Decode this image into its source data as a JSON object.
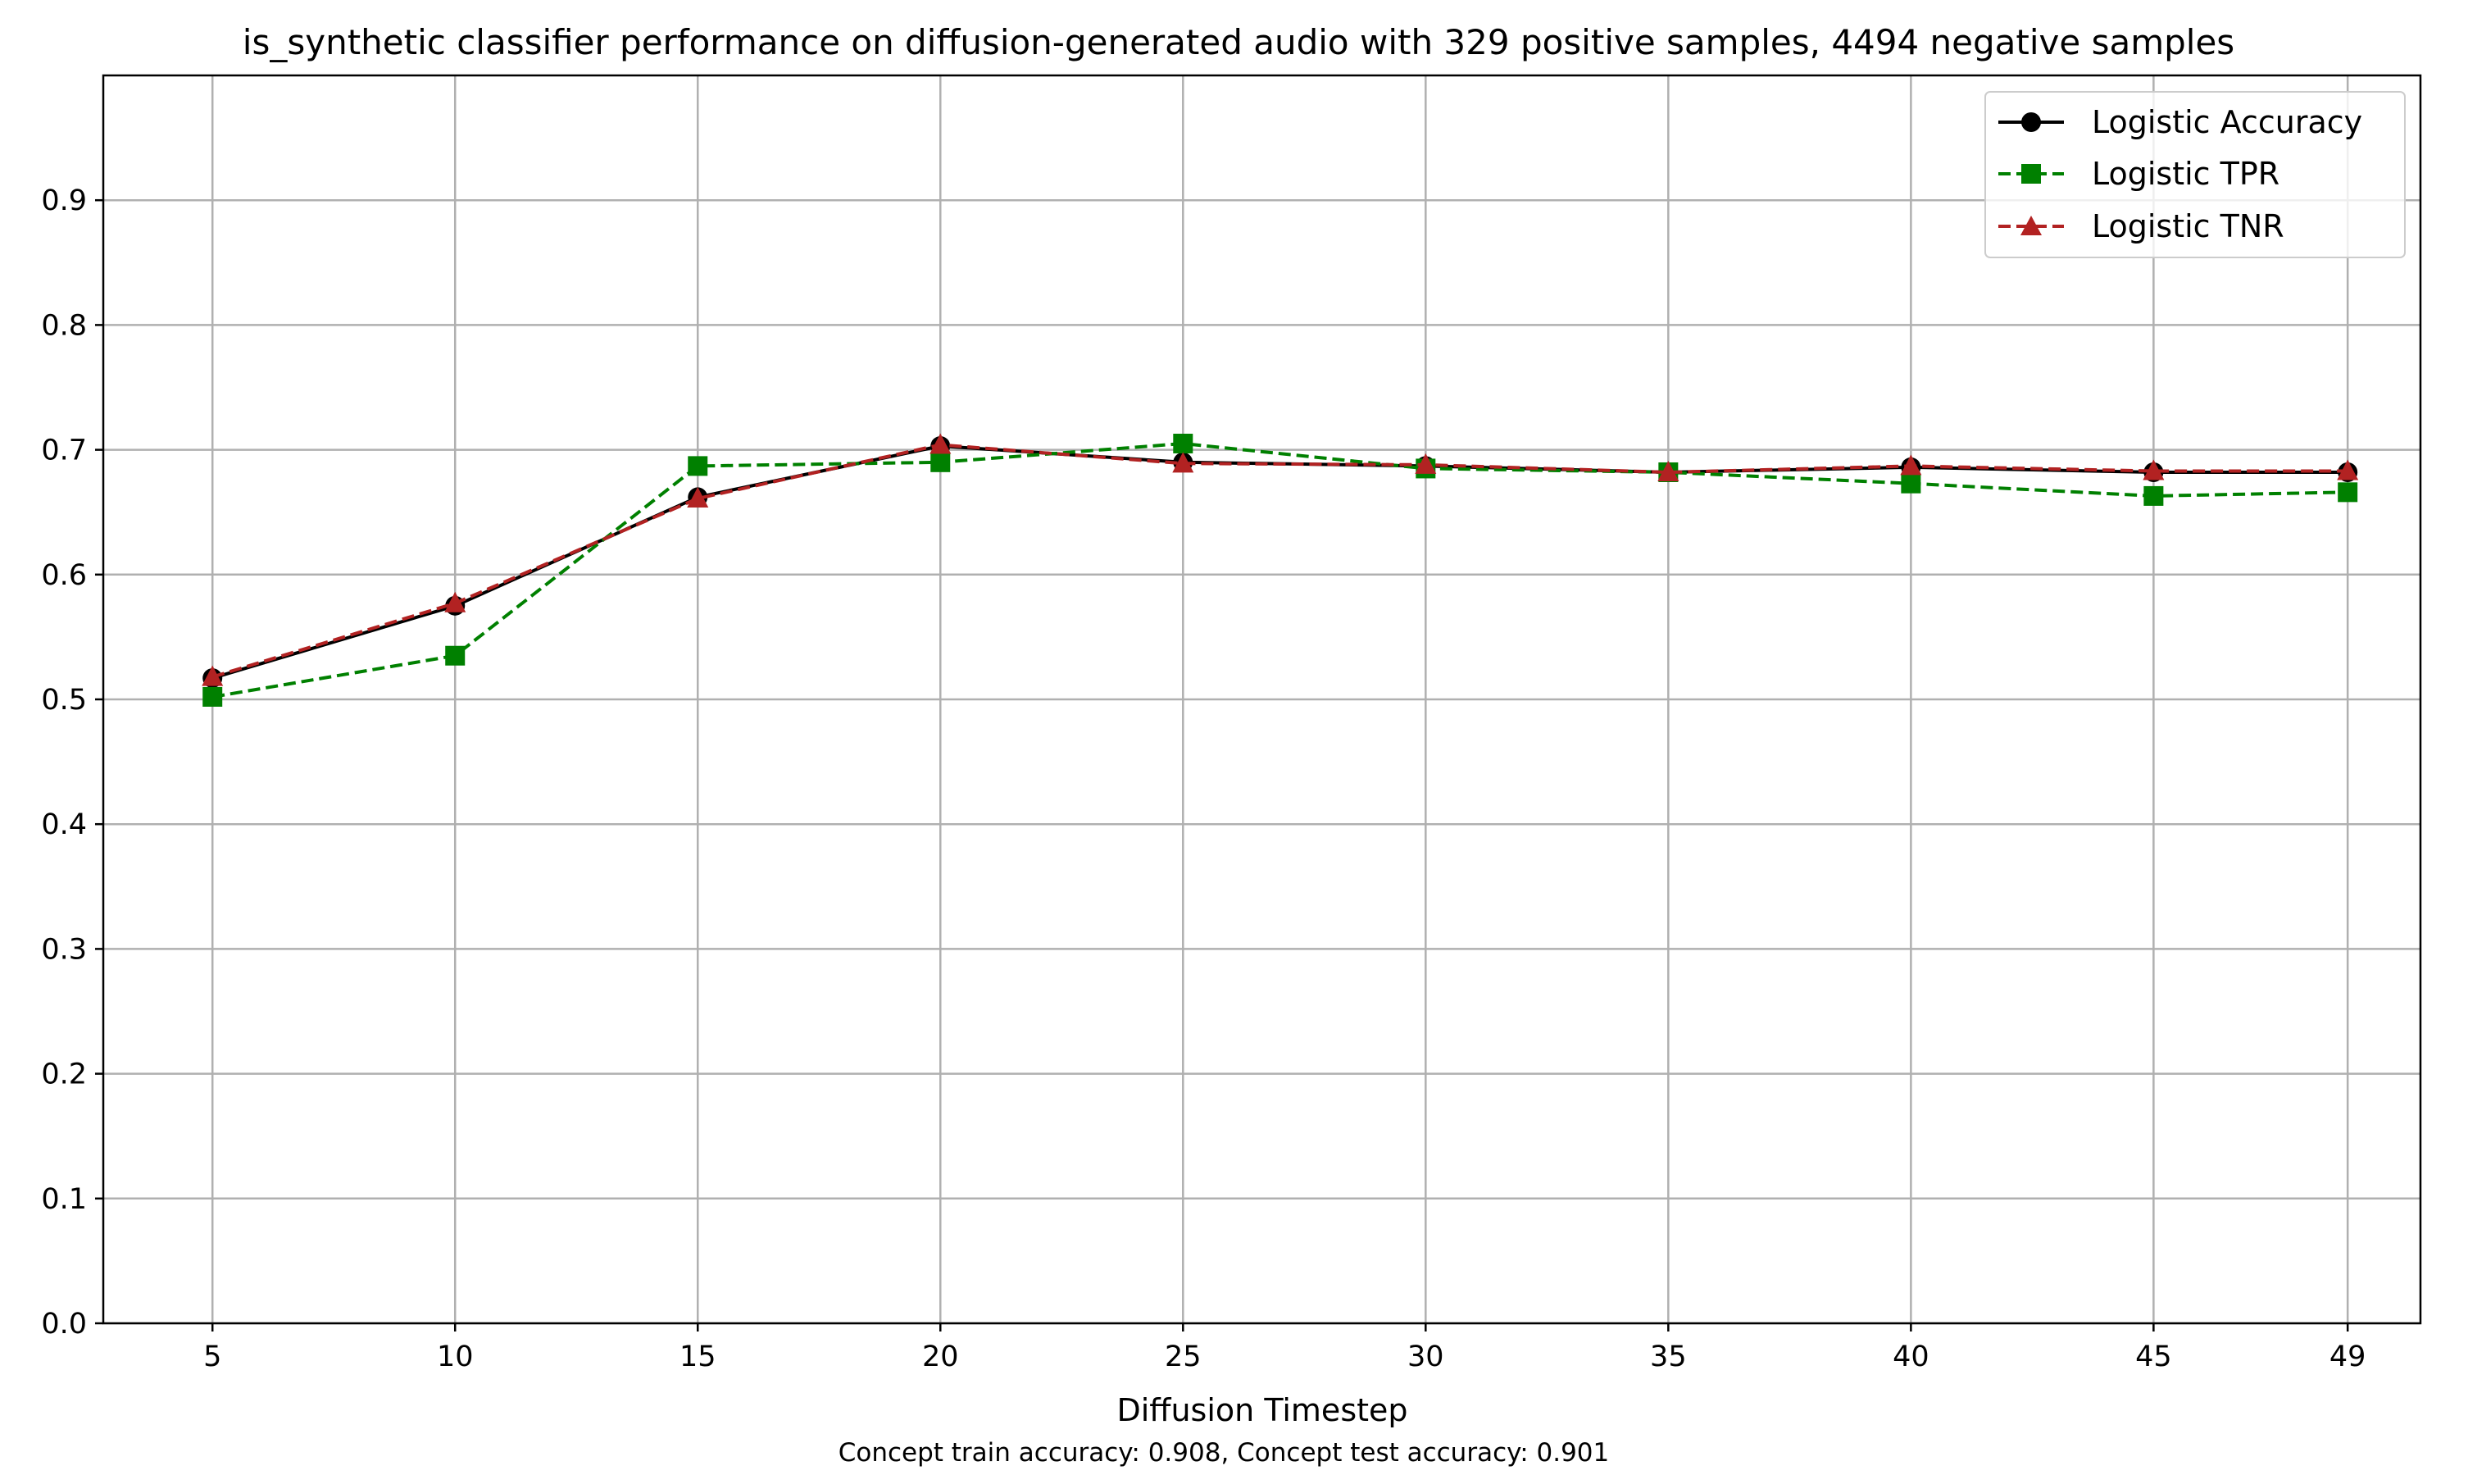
{
  "chart_data": {
    "type": "line",
    "title": "is_synthetic classifier performance on diffusion-generated audio with 329 positive samples, 4494 negative samples",
    "xlabel": "Diffusion Timestep",
    "ylabel": "",
    "footnote": "Concept train accuracy: 0.908, Concept test accuracy: 0.901",
    "x": [
      5,
      10,
      15,
      20,
      25,
      30,
      35,
      40,
      45,
      49
    ],
    "x_tick_labels": [
      "5",
      "10",
      "15",
      "20",
      "25",
      "30",
      "35",
      "40",
      "45",
      "49"
    ],
    "y_ticks": [
      0.0,
      0.1,
      0.2,
      0.3,
      0.4,
      0.5,
      0.6,
      0.7,
      0.8,
      0.9
    ],
    "y_tick_labels": [
      "0.0",
      "0.1",
      "0.2",
      "0.3",
      "0.4",
      "0.5",
      "0.6",
      "0.7",
      "0.8",
      "0.9"
    ],
    "xlim": [
      2.75,
      50.5
    ],
    "ylim": [
      0.0,
      1.0
    ],
    "grid": true,
    "legend_position": "top-right",
    "series": [
      {
        "name": "Logistic Accuracy",
        "color": "#000000",
        "line_style": "solid",
        "marker": "circle",
        "values": [
          0.517,
          0.575,
          0.662,
          0.703,
          0.69,
          0.687,
          0.682,
          0.686,
          0.682,
          0.682
        ]
      },
      {
        "name": "Logistic TPR",
        "color": "#008000",
        "line_style": "dashed",
        "marker": "square",
        "values": [
          0.502,
          0.535,
          0.687,
          0.69,
          0.705,
          0.685,
          0.682,
          0.673,
          0.663,
          0.666
        ]
      },
      {
        "name": "Logistic TNR",
        "color": "#b22222",
        "line_style": "dashed",
        "marker": "triangle",
        "values": [
          0.518,
          0.577,
          0.661,
          0.704,
          0.689,
          0.688,
          0.682,
          0.687,
          0.683,
          0.683
        ]
      }
    ]
  }
}
